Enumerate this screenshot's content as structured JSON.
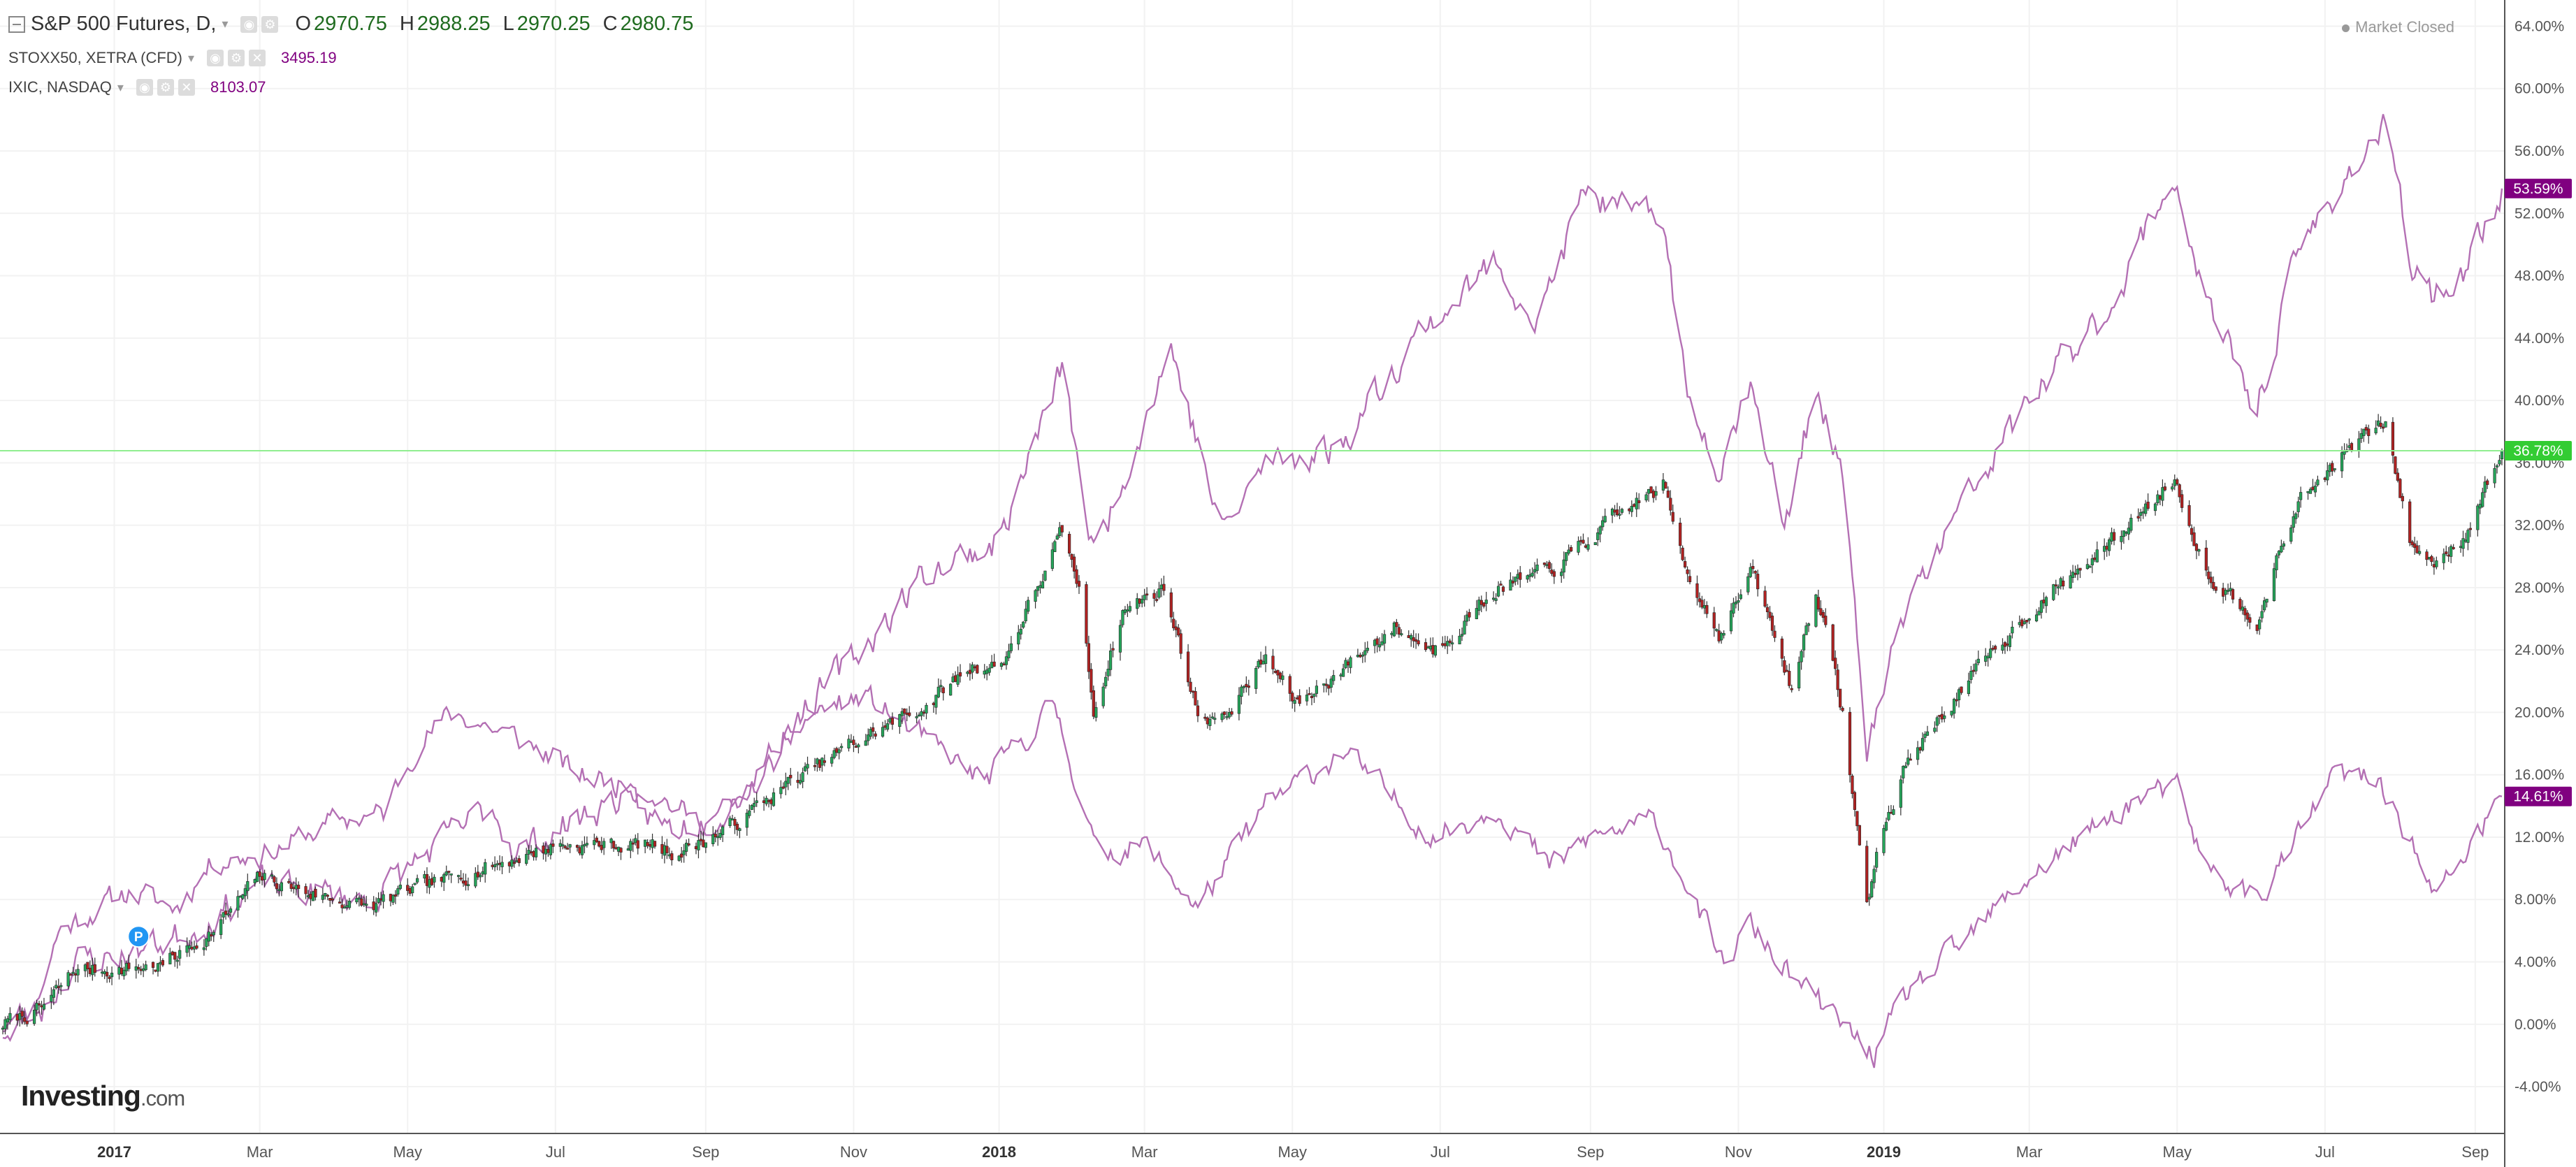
{
  "legend": {
    "main": {
      "symbol": "S&P 500 Futures, D,",
      "open_label": "O",
      "open": "2970.75",
      "high_label": "H",
      "high": "2988.25",
      "low_label": "L",
      "low": "2970.25",
      "close_label": "C",
      "close": "2980.75"
    },
    "compare": [
      {
        "symbol": "STOXX50, XETRA (CFD)",
        "value": "3495.19"
      },
      {
        "symbol": "IXIC, NASDAQ",
        "value": "8103.07"
      }
    ]
  },
  "status": {
    "market": "Market Closed"
  },
  "brand": {
    "name": "Investing",
    "suffix": ".com"
  },
  "marker": {
    "label": "P"
  },
  "colors": {
    "up": "#26a65b",
    "down": "#b22222",
    "compare_line": "#b470b4",
    "price_line": "#90ee90",
    "badge_main": "#33cc33",
    "badge_compare": "#800080",
    "axis_text": "#555555"
  },
  "chart_data": {
    "type": "candlestick-compare",
    "x_axis": {
      "type": "date",
      "range": [
        "2016-11-15",
        "2019-09-12"
      ],
      "ticks": [
        {
          "date": "2016-12-31",
          "label": "2017",
          "bold": true
        },
        {
          "date": "2017-03-01",
          "label": "Mar"
        },
        {
          "date": "2017-05-01",
          "label": "May"
        },
        {
          "date": "2017-07-01",
          "label": "Jul"
        },
        {
          "date": "2017-09-01",
          "label": "Sep"
        },
        {
          "date": "2017-11-01",
          "label": "Nov"
        },
        {
          "date": "2017-12-31",
          "label": "2018",
          "bold": true
        },
        {
          "date": "2018-03-01",
          "label": "Mar"
        },
        {
          "date": "2018-05-01",
          "label": "May"
        },
        {
          "date": "2018-07-01",
          "label": "Jul"
        },
        {
          "date": "2018-09-01",
          "label": "Sep"
        },
        {
          "date": "2018-11-01",
          "label": "Nov"
        },
        {
          "date": "2018-12-31",
          "label": "2019",
          "bold": true
        },
        {
          "date": "2019-03-01",
          "label": "Mar"
        },
        {
          "date": "2019-05-01",
          "label": "May"
        },
        {
          "date": "2019-07-01",
          "label": "Jul"
        },
        {
          "date": "2019-09-01",
          "label": "Sep"
        }
      ]
    },
    "y_axis": {
      "unit": "%",
      "range": [
        -7.0,
        65.5
      ],
      "ticks": [
        "64.00%",
        "60.00%",
        "56.00%",
        "52.00%",
        "48.00%",
        "44.00%",
        "40.00%",
        "36.00%",
        "32.00%",
        "28.00%",
        "24.00%",
        "20.00%",
        "16.00%",
        "12.00%",
        "8.00%",
        "4.00%",
        "0.00%",
        "-4.00%"
      ],
      "tick_values": [
        64,
        60,
        56,
        52,
        48,
        44,
        40,
        36,
        32,
        28,
        24,
        20,
        16,
        12,
        8,
        4,
        0,
        -4
      ],
      "grid": true
    },
    "series": [
      {
        "name": "S&P 500 Futures, D,",
        "kind": "candlestick",
        "last_label": "36.78%",
        "last_value": 36.78,
        "anchors": [
          [
            "2016-11-15",
            0.0
          ],
          [
            "2016-12-01",
            1.0
          ],
          [
            "2016-12-15",
            3.5
          ],
          [
            "2017-01-01",
            3.5
          ],
          [
            "2017-01-20",
            3.8
          ],
          [
            "2017-02-10",
            6.0
          ],
          [
            "2017-03-01",
            9.5
          ],
          [
            "2017-03-20",
            8.5
          ],
          [
            "2017-04-15",
            7.5
          ],
          [
            "2017-05-01",
            8.5
          ],
          [
            "2017-06-01",
            10.0
          ],
          [
            "2017-07-01",
            11.5
          ],
          [
            "2017-08-10",
            11.5
          ],
          [
            "2017-08-20",
            11.0
          ],
          [
            "2017-09-10",
            12.5
          ],
          [
            "2017-10-01",
            15.0
          ],
          [
            "2017-11-01",
            18.0
          ],
          [
            "2017-12-01",
            20.5
          ],
          [
            "2017-12-20",
            23.0
          ],
          [
            "2018-01-01",
            23.0
          ],
          [
            "2018-01-26",
            31.5
          ],
          [
            "2018-02-02",
            28.0
          ],
          [
            "2018-02-08",
            20.0
          ],
          [
            "2018-02-20",
            26.5
          ],
          [
            "2018-03-09",
            28.0
          ],
          [
            "2018-03-23",
            20.0
          ],
          [
            "2018-04-02",
            19.5
          ],
          [
            "2018-04-20",
            23.5
          ],
          [
            "2018-05-03",
            20.5
          ],
          [
            "2018-06-12",
            25.5
          ],
          [
            "2018-06-28",
            24.0
          ],
          [
            "2018-07-25",
            28.0
          ],
          [
            "2018-08-15",
            29.0
          ],
          [
            "2018-09-20",
            33.5
          ],
          [
            "2018-10-01",
            34.5
          ],
          [
            "2018-10-10",
            29.5
          ],
          [
            "2018-10-24",
            25.0
          ],
          [
            "2018-11-07",
            29.0
          ],
          [
            "2018-11-23",
            21.5
          ],
          [
            "2018-12-03",
            28.0
          ],
          [
            "2018-12-14",
            20.0
          ],
          [
            "2018-12-24",
            7.5
          ],
          [
            "2018-12-28",
            11.0
          ],
          [
            "2019-01-10",
            17.0
          ],
          [
            "2019-02-01",
            21.5
          ],
          [
            "2019-03-01",
            26.5
          ],
          [
            "2019-04-01",
            30.5
          ],
          [
            "2019-04-30",
            35.0
          ],
          [
            "2019-05-13",
            29.0
          ],
          [
            "2019-06-03",
            26.0
          ],
          [
            "2019-06-20",
            33.5
          ],
          [
            "2019-07-15",
            37.5
          ],
          [
            "2019-07-26",
            38.5
          ],
          [
            "2019-08-05",
            31.0
          ],
          [
            "2019-08-14",
            29.5
          ],
          [
            "2019-08-28",
            31.5
          ],
          [
            "2019-09-12",
            36.78
          ]
        ]
      },
      {
        "name": "STOXX50, XETRA (CFD)",
        "kind": "line",
        "last_label": "14.61%",
        "last_value": 14.61,
        "anchors": [
          [
            "2016-11-15",
            -0.5
          ],
          [
            "2016-11-28",
            1.0
          ],
          [
            "2016-12-08",
            6.0
          ],
          [
            "2017-01-05",
            8.5
          ],
          [
            "2017-01-25",
            7.5
          ],
          [
            "2017-02-10",
            10.5
          ],
          [
            "2017-03-05",
            11.0
          ],
          [
            "2017-04-01",
            13.0
          ],
          [
            "2017-04-21",
            13.5
          ],
          [
            "2017-05-05",
            18.0
          ],
          [
            "2017-05-20",
            20.0
          ],
          [
            "2017-06-20",
            18.0
          ],
          [
            "2017-07-10",
            16.0
          ],
          [
            "2017-08-10",
            15.0
          ],
          [
            "2017-08-28",
            13.0
          ],
          [
            "2017-09-15",
            14.0
          ],
          [
            "2017-10-15",
            20.0
          ],
          [
            "2017-11-06",
            21.0
          ],
          [
            "2017-11-28",
            18.5
          ],
          [
            "2017-12-25",
            15.5
          ],
          [
            "2018-01-23",
            20.5
          ],
          [
            "2018-02-09",
            11.0
          ],
          [
            "2018-03-01",
            11.5
          ],
          [
            "2018-03-23",
            7.5
          ],
          [
            "2018-04-20",
            14.0
          ],
          [
            "2018-05-22",
            17.5
          ],
          [
            "2018-06-28",
            12.0
          ],
          [
            "2018-07-25",
            14.0
          ],
          [
            "2018-08-15",
            10.0
          ],
          [
            "2018-09-01",
            12.0
          ],
          [
            "2018-09-28",
            13.0
          ],
          [
            "2018-10-11",
            9.0
          ],
          [
            "2018-10-26",
            3.5
          ],
          [
            "2018-11-05",
            6.5
          ],
          [
            "2018-11-23",
            3.0
          ],
          [
            "2018-12-10",
            0.5
          ],
          [
            "2018-12-27",
            -2.0
          ],
          [
            "2019-01-10",
            2.0
          ],
          [
            "2019-02-01",
            5.0
          ],
          [
            "2019-03-01",
            9.5
          ],
          [
            "2019-04-15",
            14.5
          ],
          [
            "2019-05-01",
            15.0
          ],
          [
            "2019-05-13",
            10.0
          ],
          [
            "2019-06-03",
            8.0
          ],
          [
            "2019-06-20",
            12.0
          ],
          [
            "2019-07-05",
            16.0
          ],
          [
            "2019-07-24",
            15.5
          ],
          [
            "2019-08-05",
            12.0
          ],
          [
            "2019-08-15",
            8.0
          ],
          [
            "2019-08-28",
            11.0
          ],
          [
            "2019-09-12",
            14.61
          ]
        ]
      },
      {
        "name": "IXIC, NASDAQ",
        "kind": "line",
        "last_label": "53.59%",
        "last_value": 53.59,
        "anchors": [
          [
            "2016-11-15",
            0.0
          ],
          [
            "2016-12-01",
            1.0
          ],
          [
            "2016-12-15",
            4.0
          ],
          [
            "2017-01-05",
            4.5
          ],
          [
            "2017-02-01",
            6.0
          ],
          [
            "2017-03-01",
            9.0
          ],
          [
            "2017-04-15",
            8.0
          ],
          [
            "2017-05-05",
            10.5
          ],
          [
            "2017-06-05",
            14.0
          ],
          [
            "2017-06-15",
            11.0
          ],
          [
            "2017-07-26",
            14.5
          ],
          [
            "2017-08-18",
            12.5
          ],
          [
            "2017-09-10",
            14.0
          ],
          [
            "2017-10-10",
            20.0
          ],
          [
            "2017-11-01",
            23.5
          ],
          [
            "2017-12-01",
            29.0
          ],
          [
            "2017-12-31",
            31.0
          ],
          [
            "2018-01-26",
            42.0
          ],
          [
            "2018-02-08",
            30.0
          ],
          [
            "2018-03-12",
            43.5
          ],
          [
            "2018-04-02",
            31.5
          ],
          [
            "2018-04-20",
            36.0
          ],
          [
            "2018-05-20",
            37.0
          ],
          [
            "2018-06-20",
            44.0
          ],
          [
            "2018-07-25",
            49.0
          ],
          [
            "2018-08-10",
            45.0
          ],
          [
            "2018-08-30",
            53.5
          ],
          [
            "2018-09-20",
            51.5
          ],
          [
            "2018-10-01",
            52.0
          ],
          [
            "2018-10-11",
            40.0
          ],
          [
            "2018-10-24",
            36.0
          ],
          [
            "2018-11-07",
            41.5
          ],
          [
            "2018-11-20",
            31.5
          ],
          [
            "2018-12-03",
            41.0
          ],
          [
            "2018-12-14",
            35.0
          ],
          [
            "2018-12-24",
            17.5
          ],
          [
            "2019-01-10",
            27.0
          ],
          [
            "2019-02-01",
            33.0
          ],
          [
            "2019-03-01",
            40.0
          ],
          [
            "2019-04-01",
            45.5
          ],
          [
            "2019-04-30",
            54.5
          ],
          [
            "2019-05-13",
            46.0
          ],
          [
            "2019-06-03",
            39.5
          ],
          [
            "2019-06-20",
            49.5
          ],
          [
            "2019-07-10",
            54.5
          ],
          [
            "2019-07-26",
            57.5
          ],
          [
            "2019-08-05",
            49.0
          ],
          [
            "2019-08-15",
            46.5
          ],
          [
            "2019-08-28",
            48.5
          ],
          [
            "2019-09-12",
            53.59
          ]
        ]
      }
    ],
    "price_line": 36.78,
    "marker": {
      "date": "2017-01-10",
      "value": 5.0
    }
  }
}
